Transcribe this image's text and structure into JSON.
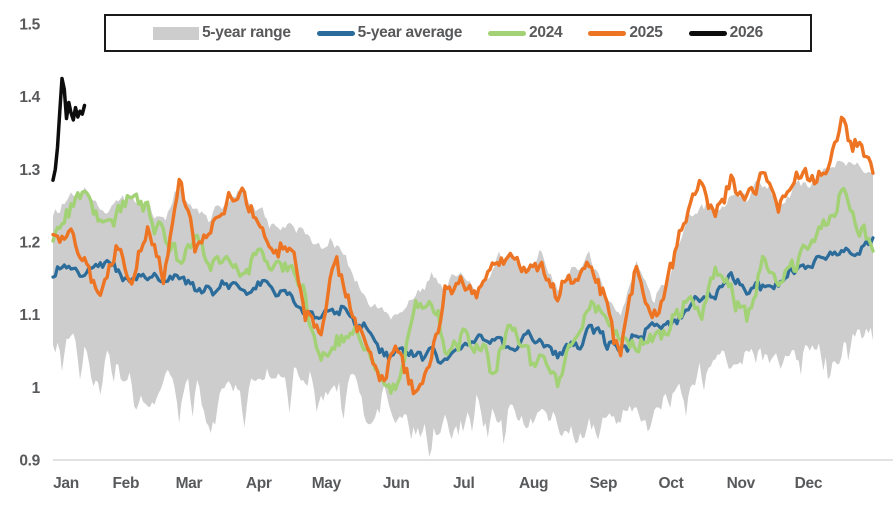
{
  "page": {
    "background": "#ffffff"
  },
  "chart_data": {
    "type": "line",
    "title": "",
    "xlabel": "",
    "ylabel": "",
    "x_unit": "day-of-year",
    "x_range_days": [
      0,
      364
    ],
    "ylim": [
      0.9,
      1.5
    ],
    "grid": "off",
    "axis_line_color": "#d9d9d9",
    "text_color": "#58595b",
    "y_ticks": [
      {
        "label": "1.5",
        "value": 1.5
      },
      {
        "label": "1.4",
        "value": 1.4
      },
      {
        "label": "1.3",
        "value": 1.3
      },
      {
        "label": "1.2",
        "value": 1.2
      },
      {
        "label": "1.1",
        "value": 1.1
      },
      {
        "label": "1",
        "value": 1.0
      },
      {
        "label": "0.9",
        "value": 0.9
      }
    ],
    "x_tick_labels": [
      "Jan",
      "Feb",
      "Mar",
      "Apr",
      "May",
      "Jun",
      "Jul",
      "Aug",
      "Sep",
      "Oct",
      "Nov",
      "Dec"
    ],
    "month_start_days": [
      0,
      31,
      59,
      90,
      120,
      151,
      181,
      212,
      243,
      273,
      304,
      334
    ],
    "anchor_interval_days": 7,
    "band": {
      "name": "5-year range",
      "color": "#cdcdcd",
      "top_weekly": [
        1.245,
        1.255,
        1.27,
        1.24,
        1.25,
        1.265,
        1.25,
        1.23,
        1.275,
        1.24,
        1.235,
        1.255,
        1.275,
        1.245,
        1.22,
        1.225,
        1.21,
        1.19,
        1.2,
        1.15,
        1.12,
        1.1,
        1.11,
        1.13,
        1.15,
        1.14,
        1.16,
        1.13,
        1.17,
        1.19,
        1.16,
        1.18,
        1.13,
        1.16,
        1.18,
        1.13,
        1.1,
        1.17,
        1.12,
        1.15,
        1.22,
        1.255,
        1.24,
        1.265,
        1.26,
        1.285,
        1.25,
        1.28,
        1.28,
        1.3,
        1.315,
        1.305,
        1.29
      ],
      "bottom_weekly": [
        1.08,
        1.06,
        1.05,
        1.04,
        1.05,
        1.0,
        0.985,
        1.02,
        0.99,
        1.02,
        0.98,
        1.01,
        1.0,
        1.015,
        1.04,
        1.01,
        1.03,
        1.0,
        0.99,
        1.01,
        0.975,
        0.99,
        0.96,
        0.975,
        0.94,
        0.96,
        0.97,
        0.99,
        0.96,
        0.975,
        0.955,
        0.97,
        0.95,
        0.935,
        0.95,
        0.97,
        0.955,
        0.98,
        0.96,
        1.0,
        1.02,
        1.03,
        1.05,
        1.04,
        1.05,
        1.06,
        1.04,
        1.06,
        1.05,
        1.07,
        1.06,
        1.08,
        1.08
      ]
    },
    "series": [
      {
        "name": "5-year average",
        "color": "#2b6c9b",
        "stroke_width": 3.2,
        "noise_daily": 0.005,
        "noise_swing": 0.009,
        "seed": 11,
        "weekly": [
          1.16,
          1.165,
          1.155,
          1.17,
          1.16,
          1.15,
          1.155,
          1.14,
          1.16,
          1.14,
          1.13,
          1.14,
          1.135,
          1.14,
          1.13,
          1.12,
          1.11,
          1.1,
          1.11,
          1.09,
          1.07,
          1.045,
          1.05,
          1.035,
          1.05,
          1.04,
          1.06,
          1.07,
          1.06,
          1.055,
          1.07,
          1.06,
          1.04,
          1.05,
          1.08,
          1.065,
          1.05,
          1.07,
          1.08,
          1.09,
          1.1,
          1.12,
          1.13,
          1.15,
          1.13,
          1.14,
          1.15,
          1.16,
          1.17,
          1.18,
          1.19,
          1.185,
          1.21
        ]
      },
      {
        "name": "2024",
        "color": "#a3d175",
        "stroke_width": 3.4,
        "noise_daily": 0.008,
        "noise_swing": 0.014,
        "seed": 21,
        "weekly": [
          1.22,
          1.24,
          1.27,
          1.22,
          1.24,
          1.26,
          1.245,
          1.21,
          1.18,
          1.2,
          1.16,
          1.19,
          1.15,
          1.18,
          1.16,
          1.18,
          1.12,
          1.035,
          1.07,
          1.09,
          1.05,
          1.005,
          1.01,
          1.13,
          1.12,
          1.04,
          1.08,
          1.06,
          1.03,
          1.09,
          1.05,
          1.03,
          1.01,
          1.07,
          1.11,
          1.09,
          1.06,
          1.05,
          1.08,
          1.09,
          1.12,
          1.1,
          1.15,
          1.13,
          1.1,
          1.17,
          1.13,
          1.17,
          1.19,
          1.22,
          1.275,
          1.21,
          1.195
        ]
      },
      {
        "name": "2025",
        "color": "#ed7423",
        "stroke_width": 3.4,
        "noise_daily": 0.008,
        "noise_swing": 0.014,
        "seed": 31,
        "weekly": [
          1.195,
          1.22,
          1.17,
          1.135,
          1.19,
          1.16,
          1.21,
          1.15,
          1.275,
          1.2,
          1.22,
          1.25,
          1.28,
          1.22,
          1.18,
          1.2,
          1.1,
          1.08,
          1.185,
          1.1,
          1.06,
          1.01,
          1.05,
          1.0,
          1.04,
          1.135,
          1.15,
          1.12,
          1.17,
          1.19,
          1.15,
          1.18,
          1.12,
          1.155,
          1.18,
          1.12,
          1.04,
          1.17,
          1.09,
          1.14,
          1.22,
          1.27,
          1.24,
          1.29,
          1.26,
          1.3,
          1.24,
          1.28,
          1.29,
          1.3,
          1.36,
          1.33,
          1.295
        ]
      },
      {
        "name": "2026",
        "color": "#0d0d0d",
        "stroke_width": 3.5,
        "start_day": 0,
        "daily": [
          1.285,
          1.3,
          1.33,
          1.38,
          1.425,
          1.41,
          1.37,
          1.392,
          1.378,
          1.368,
          1.385,
          1.372,
          1.38,
          1.376,
          1.388
        ]
      }
    ],
    "legend": {
      "position": "top-center",
      "border_color": "#1a1a1a",
      "entries": [
        {
          "label": "5-year range",
          "color": "#cdcdcd",
          "swatch": "band"
        },
        {
          "label": "5-year average",
          "color": "#2b6c9b",
          "swatch": "line"
        },
        {
          "label": "2024",
          "color": "#a3d175",
          "swatch": "line"
        },
        {
          "label": "2025",
          "color": "#ed7423",
          "swatch": "line"
        },
        {
          "label": "2026",
          "color": "#0d0d0d",
          "swatch": "line"
        }
      ]
    },
    "noise_hints": {
      "band_top_daily": 0.005,
      "band_top_swing": 0.008,
      "band_bottom_daily": 0.008,
      "band_bottom_swing": 0.012,
      "band_bottom_spike": 0.048
    }
  }
}
